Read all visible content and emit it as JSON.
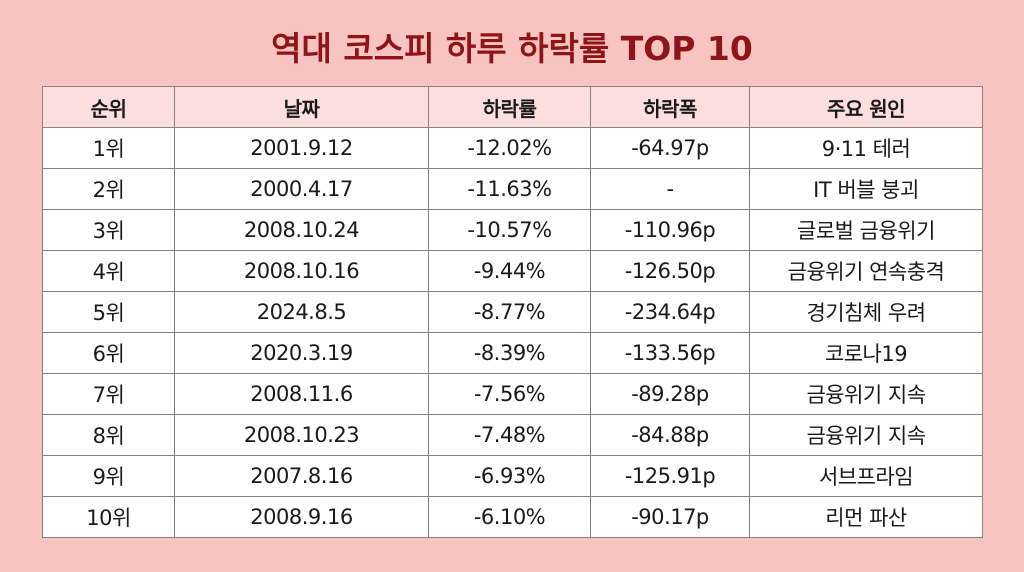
{
  "title": "역대 코스피 하루 하락률 TOP 10",
  "colors": {
    "background": "#f7c4c2",
    "title": "#8e1418",
    "header_bg": "#fbdedd",
    "cell_bg": "#ffffff",
    "border": "#8a8080"
  },
  "table": {
    "headers": [
      "순위",
      "날짜",
      "하락률",
      "하락폭",
      "주요 원인"
    ],
    "rows": [
      [
        "1위",
        "2001.9.12",
        "-12.02%",
        "-64.97p",
        "9·11 테러"
      ],
      [
        "2위",
        "2000.4.17",
        "-11.63%",
        "-",
        "IT 버블 붕괴"
      ],
      [
        "3위",
        "2008.10.24",
        "-10.57%",
        "-110.96p",
        "글로벌 금융위기"
      ],
      [
        "4위",
        "2008.10.16",
        "-9.44%",
        "-126.50p",
        "금융위기 연속충격"
      ],
      [
        "5위",
        "2024.8.5",
        "-8.77%",
        "-234.64p",
        "경기침체 우려"
      ],
      [
        "6위",
        "2020.3.19",
        "-8.39%",
        "-133.56p",
        "코로나19"
      ],
      [
        "7위",
        "2008.11.6",
        "-7.56%",
        "-89.28p",
        "금융위기 지속"
      ],
      [
        "8위",
        "2008.10.23",
        "-7.48%",
        "-84.88p",
        "금융위기 지속"
      ],
      [
        "9위",
        "2007.8.16",
        "-6.93%",
        "-125.91p",
        "서브프라임"
      ],
      [
        "10위",
        "2008.9.16",
        "-6.10%",
        "-90.17p",
        "리먼 파산"
      ]
    ]
  }
}
